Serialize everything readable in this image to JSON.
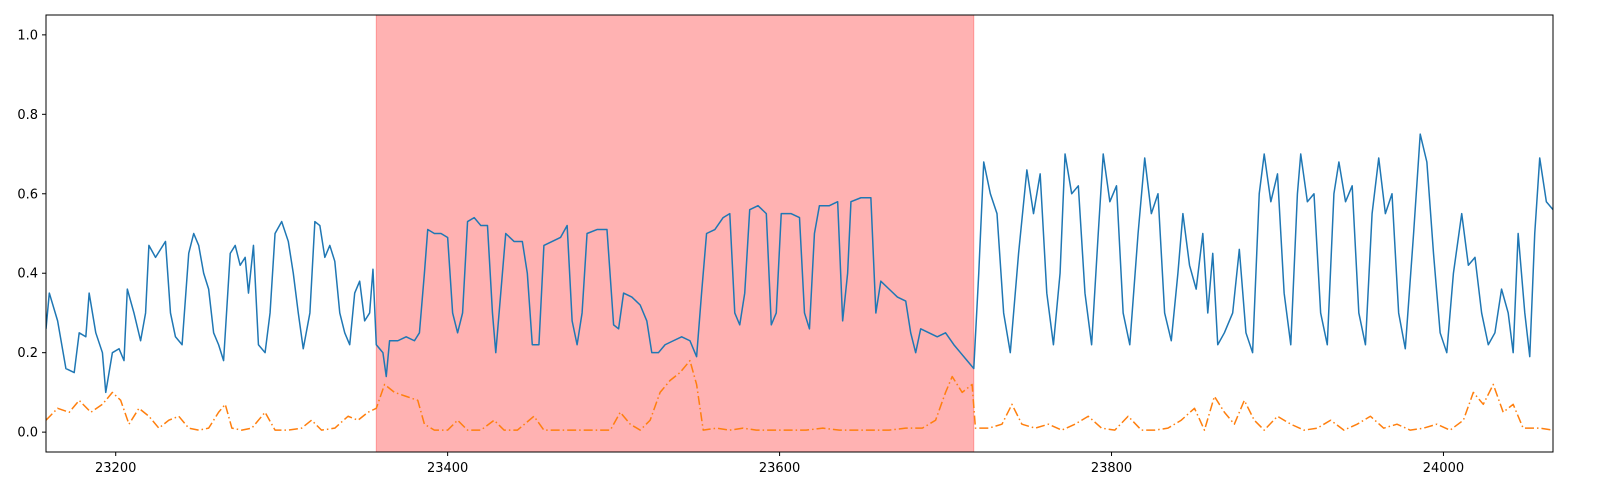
{
  "chart_data": {
    "type": "line",
    "xlim": [
      23158,
      24066
    ],
    "ylim": [
      -0.05,
      1.05
    ],
    "xticks": [
      23200,
      23400,
      23600,
      23800,
      24000
    ],
    "yticks": [
      {
        "value": 0,
        "label": "0.0"
      },
      0.2,
      0.4,
      0.6,
      0.8,
      {
        "value": 1,
        "label": "1.0"
      }
    ],
    "shaded_region": [
      23357,
      23717
    ],
    "shade_color": "#ff0000",
    "series": [
      {
        "color": "#1f77b4",
        "style": "solid",
        "x": [
          23158,
          23160,
          23165,
          23170,
          23175,
          23178,
          23182,
          23184,
          23188,
          23192,
          23194,
          23198,
          23202,
          23205,
          23207,
          23211,
          23215,
          23218,
          23220,
          23224,
          23227,
          23230,
          23233,
          23236,
          23240,
          23244,
          23247,
          23250,
          23253,
          23256,
          23259,
          23262,
          23265,
          23269,
          23272,
          23275,
          23278,
          23280,
          23283,
          23286,
          23290,
          23293,
          23296,
          23300,
          23304,
          23307,
          23310,
          23313,
          23317,
          23320,
          23323,
          23326,
          23329,
          23332,
          23335,
          23338,
          23341,
          23344,
          23347,
          23350,
          23353,
          23355,
          23357,
          23361,
          23363,
          23365,
          23370,
          23375,
          23380,
          23383,
          23386,
          23388,
          23392,
          23396,
          23400,
          23403,
          23406,
          23409,
          23412,
          23416,
          23420,
          23424,
          23427,
          23429,
          23432,
          23435,
          23440,
          23445,
          23448,
          23451,
          23455,
          23458,
          23463,
          23468,
          23472,
          23475,
          23478,
          23481,
          23484,
          23490,
          23496,
          23500,
          23503,
          23506,
          23511,
          23516,
          23520,
          23523,
          23527,
          23531,
          23536,
          23541,
          23546,
          23550,
          23553,
          23556,
          23561,
          23566,
          23570,
          23573,
          23576,
          23579,
          23582,
          23587,
          23592,
          23595,
          23598,
          23601,
          23607,
          23612,
          23615,
          23618,
          23621,
          23624,
          23630,
          23635,
          23638,
          23641,
          23643,
          23649,
          23655,
          23658,
          23661,
          23666,
          23671,
          23676,
          23679,
          23682,
          23685,
          23690,
          23695,
          23700,
          23705,
          23709,
          23713,
          23717,
          23720,
          23723,
          23727,
          23731,
          23735,
          23739,
          23744,
          23749,
          23753,
          23757,
          23761,
          23765,
          23769,
          23772,
          23776,
          23780,
          23784,
          23788,
          23792,
          23795,
          23799,
          23803,
          23807,
          23811,
          23816,
          23820,
          23824,
          23828,
          23832,
          23836,
          23840,
          23843,
          23847,
          23851,
          23855,
          23858,
          23861,
          23864,
          23868,
          23873,
          23877,
          23881,
          23885,
          23889,
          23892,
          23896,
          23900,
          23904,
          23908,
          23912,
          23914,
          23918,
          23922,
          23926,
          23930,
          23934,
          23937,
          23941,
          23945,
          23949,
          23953,
          23957,
          23961,
          23965,
          23969,
          23973,
          23977,
          23982,
          23986,
          23990,
          23994,
          23998,
          24002,
          24006,
          24011,
          24015,
          24019,
          24023,
          24027,
          24031,
          24035,
          24039,
          24042,
          24045,
          24049,
          24052,
          24055,
          24058,
          24062,
          24066
        ],
        "values": [
          0.26,
          0.35,
          0.28,
          0.16,
          0.15,
          0.25,
          0.24,
          0.35,
          0.25,
          0.2,
          0.1,
          0.2,
          0.21,
          0.18,
          0.36,
          0.3,
          0.23,
          0.3,
          0.47,
          0.44,
          0.46,
          0.48,
          0.3,
          0.24,
          0.22,
          0.45,
          0.5,
          0.47,
          0.4,
          0.36,
          0.25,
          0.22,
          0.18,
          0.45,
          0.47,
          0.42,
          0.44,
          0.35,
          0.47,
          0.22,
          0.2,
          0.3,
          0.5,
          0.53,
          0.48,
          0.4,
          0.3,
          0.21,
          0.3,
          0.53,
          0.52,
          0.44,
          0.47,
          0.43,
          0.3,
          0.25,
          0.22,
          0.35,
          0.38,
          0.28,
          0.3,
          0.41,
          0.22,
          0.2,
          0.14,
          0.23,
          0.23,
          0.24,
          0.23,
          0.25,
          0.4,
          0.51,
          0.5,
          0.5,
          0.49,
          0.3,
          0.25,
          0.3,
          0.53,
          0.54,
          0.52,
          0.52,
          0.3,
          0.2,
          0.35,
          0.5,
          0.48,
          0.48,
          0.4,
          0.22,
          0.22,
          0.47,
          0.48,
          0.49,
          0.52,
          0.28,
          0.22,
          0.3,
          0.5,
          0.51,
          0.51,
          0.27,
          0.26,
          0.35,
          0.34,
          0.32,
          0.28,
          0.2,
          0.2,
          0.22,
          0.23,
          0.24,
          0.23,
          0.19,
          0.35,
          0.5,
          0.51,
          0.54,
          0.55,
          0.3,
          0.27,
          0.35,
          0.56,
          0.57,
          0.55,
          0.27,
          0.3,
          0.55,
          0.55,
          0.54,
          0.3,
          0.26,
          0.5,
          0.57,
          0.57,
          0.58,
          0.28,
          0.4,
          0.58,
          0.59,
          0.59,
          0.3,
          0.38,
          0.36,
          0.34,
          0.33,
          0.25,
          0.2,
          0.26,
          0.25,
          0.24,
          0.25,
          0.22,
          0.2,
          0.18,
          0.16,
          0.4,
          0.68,
          0.6,
          0.55,
          0.3,
          0.2,
          0.45,
          0.66,
          0.55,
          0.65,
          0.35,
          0.22,
          0.4,
          0.7,
          0.6,
          0.62,
          0.35,
          0.22,
          0.5,
          0.7,
          0.58,
          0.62,
          0.3,
          0.22,
          0.5,
          0.69,
          0.55,
          0.6,
          0.3,
          0.23,
          0.4,
          0.55,
          0.42,
          0.36,
          0.5,
          0.3,
          0.45,
          0.22,
          0.25,
          0.3,
          0.46,
          0.25,
          0.2,
          0.6,
          0.7,
          0.58,
          0.65,
          0.35,
          0.22,
          0.6,
          0.7,
          0.58,
          0.6,
          0.3,
          0.22,
          0.6,
          0.68,
          0.58,
          0.62,
          0.3,
          0.22,
          0.55,
          0.69,
          0.55,
          0.6,
          0.3,
          0.21,
          0.5,
          0.75,
          0.68,
          0.45,
          0.25,
          0.2,
          0.4,
          0.55,
          0.42,
          0.44,
          0.3,
          0.22,
          0.25,
          0.36,
          0.3,
          0.2,
          0.5,
          0.3,
          0.19,
          0.5,
          0.69,
          0.58,
          0.56
        ]
      },
      {
        "color": "#ff7f0e",
        "style": "dashdot",
        "x": [
          23158,
          23165,
          23172,
          23178,
          23185,
          23192,
          23198,
          23203,
          23208,
          23214,
          23220,
          23226,
          23232,
          23238,
          23244,
          23250,
          23256,
          23262,
          23266,
          23270,
          23276,
          23282,
          23290,
          23296,
          23304,
          23312,
          23318,
          23324,
          23332,
          23340,
          23346,
          23352,
          23357,
          23362,
          23368,
          23375,
          23382,
          23386,
          23392,
          23400,
          23406,
          23412,
          23420,
          23428,
          23434,
          23442,
          23452,
          23458,
          23468,
          23478,
          23488,
          23498,
          23504,
          23510,
          23516,
          23522,
          23528,
          23534,
          23540,
          23546,
          23550,
          23554,
          23562,
          23570,
          23578,
          23586,
          23596,
          23606,
          23616,
          23626,
          23636,
          23646,
          23656,
          23666,
          23676,
          23686,
          23694,
          23700,
          23704,
          23710,
          23716,
          23718,
          23726,
          23734,
          23740,
          23746,
          23754,
          23762,
          23770,
          23778,
          23786,
          23794,
          23802,
          23810,
          23818,
          23826,
          23834,
          23842,
          23850,
          23856,
          23862,
          23868,
          23874,
          23880,
          23886,
          23892,
          23900,
          23908,
          23916,
          23924,
          23932,
          23940,
          23948,
          23956,
          23964,
          23972,
          23980,
          23988,
          23996,
          24004,
          24012,
          24018,
          24024,
          24030,
          24036,
          24042,
          24048,
          24058,
          24066
        ],
        "values": [
          0.03,
          0.06,
          0.05,
          0.08,
          0.05,
          0.07,
          0.1,
          0.08,
          0.02,
          0.06,
          0.04,
          0.01,
          0.03,
          0.04,
          0.01,
          0.005,
          0.01,
          0.05,
          0.07,
          0.01,
          0.005,
          0.01,
          0.05,
          0.005,
          0.005,
          0.01,
          0.03,
          0.005,
          0.01,
          0.04,
          0.03,
          0.05,
          0.06,
          0.12,
          0.1,
          0.09,
          0.08,
          0.02,
          0.005,
          0.005,
          0.03,
          0.005,
          0.005,
          0.03,
          0.005,
          0.005,
          0.04,
          0.005,
          0.005,
          0.005,
          0.005,
          0.005,
          0.05,
          0.02,
          0.005,
          0.03,
          0.1,
          0.13,
          0.15,
          0.18,
          0.12,
          0.005,
          0.01,
          0.005,
          0.01,
          0.005,
          0.005,
          0.005,
          0.005,
          0.01,
          0.005,
          0.005,
          0.005,
          0.005,
          0.01,
          0.01,
          0.03,
          0.1,
          0.14,
          0.1,
          0.12,
          0.01,
          0.01,
          0.02,
          0.07,
          0.02,
          0.01,
          0.02,
          0.005,
          0.02,
          0.04,
          0.01,
          0.005,
          0.04,
          0.005,
          0.005,
          0.01,
          0.03,
          0.06,
          0.005,
          0.09,
          0.05,
          0.02,
          0.08,
          0.03,
          0.005,
          0.04,
          0.02,
          0.005,
          0.01,
          0.03,
          0.005,
          0.02,
          0.04,
          0.01,
          0.02,
          0.005,
          0.01,
          0.02,
          0.005,
          0.03,
          0.1,
          0.07,
          0.12,
          0.05,
          0.07,
          0.01,
          0.01,
          0.005
        ]
      }
    ]
  }
}
